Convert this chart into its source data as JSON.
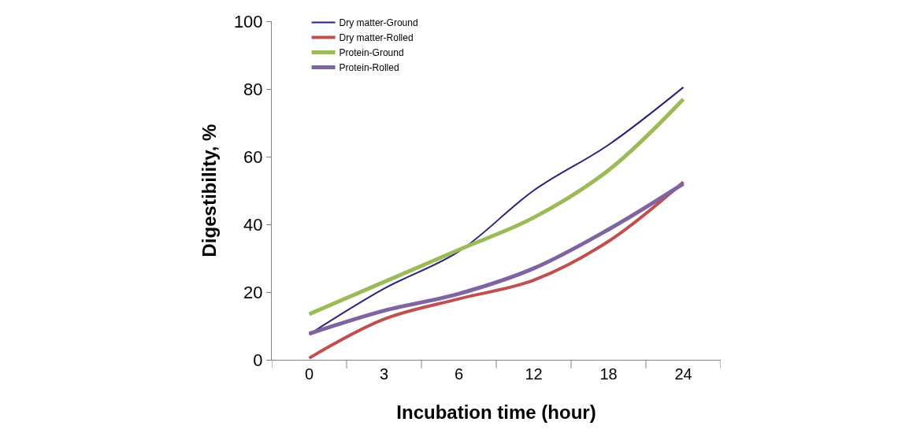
{
  "chart_data": {
    "type": "line",
    "xlabel": "Incubation time (hour)",
    "ylabel": "Digestibility, %",
    "categories": [
      "0",
      "3",
      "6",
      "12",
      "18",
      "24"
    ],
    "series": [
      {
        "name": "Dry matter-Ground",
        "color": "#25237a",
        "values": [
          7.5,
          21,
          32,
          50,
          63.5,
          80.5
        ]
      },
      {
        "name": "Dry matter-Rolled",
        "color": "#c0504d",
        "values": [
          0.5,
          12,
          18,
          23.5,
          35,
          52.5
        ]
      },
      {
        "name": "Protein-Ground",
        "color": "#9bbb59",
        "values": [
          13.5,
          23,
          32.5,
          42,
          56,
          77
        ]
      },
      {
        "name": "Protein-Rolled",
        "color": "#8064a2",
        "values": [
          7.7,
          14.5,
          19.5,
          27,
          38.5,
          52
        ]
      }
    ],
    "ylim": [
      0,
      100
    ],
    "yticks": [
      0,
      20,
      40,
      60,
      80,
      100
    ],
    "legend": "top left",
    "marker": "none",
    "line_style": "solid"
  }
}
